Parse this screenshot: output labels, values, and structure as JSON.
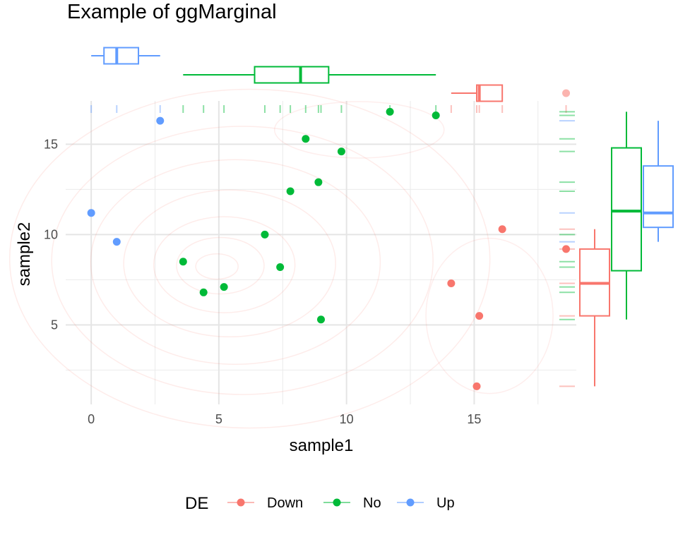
{
  "chart_data": {
    "type": "scatter",
    "title": "Example of ggMarginal",
    "xlabel": "sample1",
    "ylabel": "sample2",
    "xlim": [
      -1,
      19
    ],
    "ylim": [
      0.6,
      17.4
    ],
    "x_ticks": [
      0,
      5,
      10,
      15
    ],
    "y_ticks": [
      5,
      10,
      15
    ],
    "grid": true,
    "legend": {
      "title": "DE",
      "position": "bottom"
    },
    "series": [
      {
        "name": "Down",
        "color": "#F8766D",
        "points": [
          [
            15.1,
            1.6
          ],
          [
            15.2,
            5.5
          ],
          [
            14.1,
            7.3
          ],
          [
            18.6,
            9.2
          ],
          [
            16.1,
            10.3
          ]
        ]
      },
      {
        "name": "No",
        "color": "#00BA38",
        "points": [
          [
            4.4,
            6.8
          ],
          [
            5.2,
            7.1
          ],
          [
            3.6,
            8.5
          ],
          [
            7.4,
            8.2
          ],
          [
            6.8,
            10.0
          ],
          [
            9.0,
            5.3
          ],
          [
            7.8,
            12.4
          ],
          [
            8.9,
            12.9
          ],
          [
            9.8,
            14.6
          ],
          [
            8.4,
            15.3
          ],
          [
            11.7,
            16.8
          ],
          [
            13.5,
            16.6
          ]
        ]
      },
      {
        "name": "Up",
        "color": "#619CFF",
        "points": [
          [
            0.0,
            11.2
          ],
          [
            1.0,
            9.6
          ],
          [
            2.7,
            16.3
          ]
        ]
      }
    ],
    "marginal_x_boxplots": [
      {
        "name": "Down",
        "min": 14.1,
        "q1": 15.1,
        "median": 15.2,
        "q3": 16.1,
        "max": 16.1,
        "outliers": [
          18.6
        ]
      },
      {
        "name": "No",
        "min": 3.6,
        "q1": 6.4,
        "median": 8.2,
        "q3": 9.3,
        "max": 13.5,
        "outliers": []
      },
      {
        "name": "Up",
        "min": 0.0,
        "q1": 0.5,
        "median": 1.0,
        "q3": 1.85,
        "max": 2.7,
        "outliers": []
      }
    ],
    "marginal_y_boxplots": [
      {
        "name": "Down",
        "min": 1.6,
        "q1": 5.5,
        "median": 7.3,
        "q3": 9.2,
        "max": 10.3,
        "outliers": []
      },
      {
        "name": "No",
        "min": 5.3,
        "q1": 8.0,
        "median": 11.3,
        "q3": 14.8,
        "max": 16.8,
        "outliers": []
      },
      {
        "name": "Up",
        "min": 9.6,
        "q1": 10.4,
        "median": 11.2,
        "q3": 13.8,
        "max": 16.3,
        "outliers": []
      }
    ],
    "rugs": true,
    "density_contours": true
  }
}
